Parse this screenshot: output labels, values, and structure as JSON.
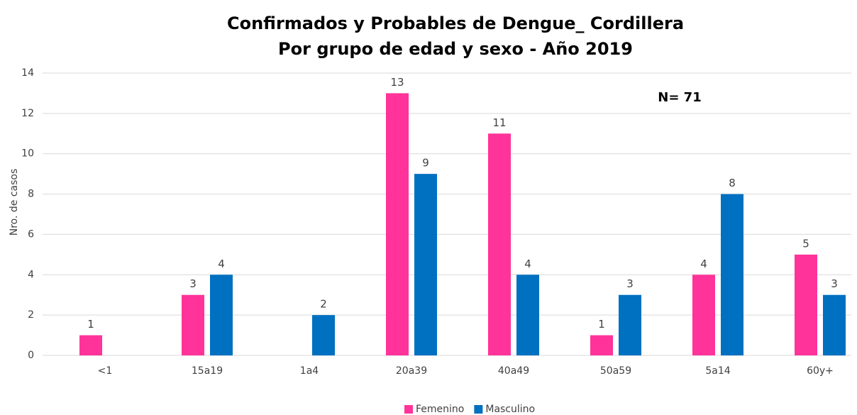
{
  "chart_data": {
    "type": "bar",
    "title": [
      "Confirmados y  Probables de Dengue_ Cordillera",
      "Por grupo de edad y sexo - Año 2019"
    ],
    "y_label": "Nro. de casos",
    "annotation": "N= 71",
    "categories": [
      "<1",
      "15a19",
      "1a4",
      "20a39",
      "40a49",
      "50a59",
      "5a14",
      "60y+"
    ],
    "series": [
      {
        "name": "Femenino",
        "color": "#ff3399",
        "values": [
          1,
          3,
          null,
          13,
          11,
          1,
          4,
          5
        ]
      },
      {
        "name": "Masculino",
        "color": "#0070c0",
        "values": [
          null,
          4,
          2,
          9,
          4,
          3,
          8,
          3
        ]
      }
    ],
    "ylim": [
      0,
      14
    ],
    "yticks": [
      0,
      2,
      4,
      6,
      8,
      10,
      12,
      14
    ],
    "grid": true,
    "legend": "bottom"
  }
}
